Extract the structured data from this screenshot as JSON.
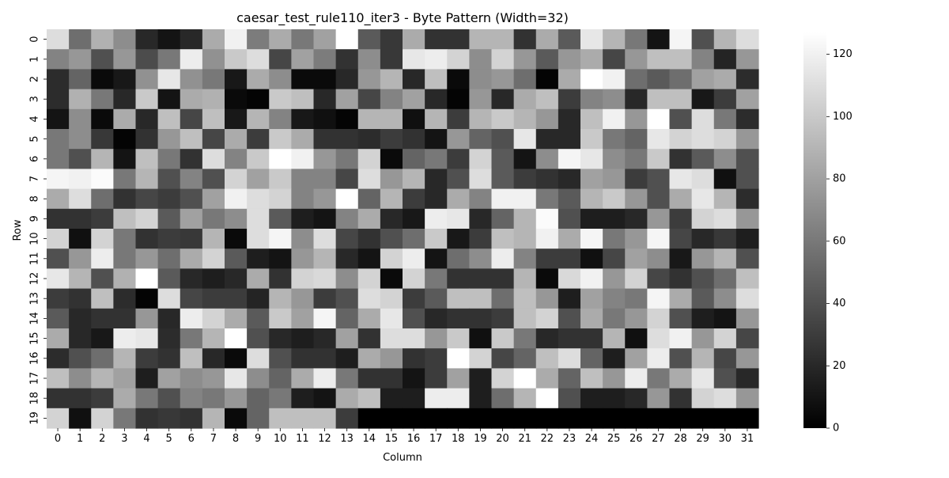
{
  "chart_data": {
    "type": "heatmap",
    "title": "caesar_test_rule110_iter3 - Byte Pattern (Width=32)",
    "xlabel": "Column",
    "ylabel": "Row",
    "x_ticks": [
      "0",
      "1",
      "2",
      "3",
      "4",
      "5",
      "6",
      "7",
      "8",
      "9",
      "10",
      "11",
      "12",
      "13",
      "14",
      "15",
      "16",
      "17",
      "18",
      "19",
      "20",
      "21",
      "22",
      "23",
      "24",
      "25",
      "26",
      "27",
      "28",
      "29",
      "30",
      "31"
    ],
    "y_ticks": [
      "0",
      "1",
      "2",
      "3",
      "4",
      "5",
      "6",
      "7",
      "8",
      "9",
      "10",
      "11",
      "12",
      "13",
      "14",
      "15",
      "16",
      "17",
      "18",
      "19"
    ],
    "value_range": [
      0,
      127
    ],
    "colormap": "gray",
    "colorbar": {
      "ticks": [
        "0",
        "20",
        "40",
        "60",
        "80",
        "100",
        "120"
      ],
      "tick_values": [
        0,
        20,
        40,
        60,
        80,
        100,
        120
      ]
    },
    "values": [
      [
        110,
        55,
        88,
        70,
        20,
        10,
        20,
        85,
        120,
        62,
        85,
        60,
        80,
        127,
        45,
        28,
        85,
        25,
        25,
        90,
        90,
        25,
        85,
        45,
        115,
        90,
        60,
        10,
        122,
        40,
        90,
        110
      ],
      [
        65,
        75,
        40,
        75,
        38,
        60,
        118,
        72,
        100,
        110,
        35,
        80,
        62,
        25,
        70,
        28,
        115,
        118,
        105,
        70,
        105,
        75,
        45,
        75,
        85,
        35,
        75,
        95,
        95,
        65,
        18,
        75
      ],
      [
        22,
        50,
        5,
        12,
        72,
        115,
        72,
        60,
        12,
        85,
        70,
        5,
        5,
        20,
        75,
        90,
        20,
        95,
        5,
        70,
        75,
        55,
        2,
        85,
        127,
        120,
        55,
        45,
        55,
        80,
        85,
        22
      ],
      [
        22,
        88,
        60,
        20,
        100,
        10,
        85,
        88,
        5,
        2,
        100,
        95,
        20,
        80,
        35,
        65,
        80,
        20,
        2,
        75,
        20,
        85,
        95,
        30,
        65,
        70,
        20,
        95,
        95,
        12,
        30,
        80
      ],
      [
        10,
        70,
        5,
        85,
        20,
        95,
        35,
        95,
        12,
        90,
        65,
        12,
        8,
        2,
        90,
        90,
        8,
        90,
        30,
        90,
        100,
        90,
        75,
        20,
        95,
        120,
        75,
        127,
        40,
        110,
        60,
        22
      ],
      [
        60,
        70,
        28,
        2,
        25,
        75,
        95,
        35,
        85,
        30,
        100,
        85,
        25,
        25,
        22,
        30,
        25,
        10,
        75,
        50,
        40,
        115,
        20,
        20,
        100,
        60,
        50,
        115,
        105,
        110,
        105,
        75
      ],
      [
        60,
        40,
        90,
        10,
        95,
        60,
        25,
        110,
        65,
        100,
        127,
        120,
        75,
        60,
        105,
        5,
        50,
        60,
        30,
        105,
        45,
        10,
        70,
        122,
        115,
        70,
        60,
        100,
        25,
        45,
        70,
        40
      ],
      [
        122,
        120,
        125,
        60,
        90,
        40,
        65,
        40,
        105,
        80,
        100,
        65,
        65,
        35,
        110,
        75,
        90,
        20,
        40,
        110,
        45,
        30,
        25,
        20,
        80,
        75,
        30,
        40,
        115,
        110,
        8,
        40
      ],
      [
        85,
        110,
        55,
        25,
        35,
        30,
        40,
        80,
        120,
        110,
        105,
        65,
        75,
        127,
        50,
        90,
        30,
        20,
        85,
        65,
        120,
        120,
        60,
        45,
        90,
        100,
        75,
        40,
        85,
        115,
        90,
        22
      ],
      [
        25,
        25,
        30,
        95,
        105,
        45,
        80,
        60,
        70,
        110,
        45,
        15,
        10,
        65,
        85,
        20,
        12,
        118,
        115,
        20,
        50,
        90,
        125,
        40,
        15,
        15,
        20,
        75,
        30,
        105,
        110,
        75
      ],
      [
        105,
        8,
        105,
        60,
        25,
        30,
        28,
        90,
        5,
        110,
        122,
        70,
        110,
        35,
        25,
        40,
        55,
        100,
        12,
        30,
        95,
        90,
        120,
        85,
        122,
        60,
        75,
        122,
        35,
        20,
        28,
        15
      ],
      [
        40,
        75,
        118,
        60,
        75,
        55,
        85,
        105,
        45,
        15,
        10,
        75,
        90,
        20,
        10,
        105,
        118,
        10,
        55,
        70,
        118,
        65,
        30,
        30,
        8,
        35,
        80,
        70,
        12,
        75,
        90,
        40
      ],
      [
        115,
        90,
        40,
        88,
        127,
        45,
        20,
        15,
        20,
        85,
        25,
        105,
        108,
        70,
        105,
        5,
        105,
        60,
        25,
        25,
        25,
        90,
        5,
        108,
        120,
        75,
        105,
        35,
        25,
        40,
        55,
        95
      ],
      [
        30,
        25,
        95,
        22,
        2,
        110,
        35,
        30,
        30,
        18,
        90,
        75,
        30,
        40,
        110,
        105,
        30,
        45,
        95,
        95,
        55,
        95,
        75,
        15,
        80,
        65,
        60,
        122,
        85,
        45,
        70,
        110
      ],
      [
        45,
        20,
        25,
        25,
        75,
        20,
        118,
        105,
        85,
        45,
        100,
        80,
        122,
        50,
        85,
        115,
        40,
        20,
        25,
        25,
        30,
        95,
        105,
        40,
        85,
        60,
        75,
        105,
        40,
        15,
        10,
        75
      ],
      [
        85,
        20,
        12,
        118,
        115,
        22,
        60,
        90,
        127,
        40,
        20,
        15,
        20,
        80,
        25,
        110,
        110,
        75,
        100,
        8,
        100,
        60,
        20,
        25,
        25,
        90,
        8,
        110,
        120,
        75,
        105,
        35
      ],
      [
        22,
        40,
        55,
        90,
        30,
        25,
        95,
        20,
        5,
        110,
        40,
        25,
        25,
        15,
        85,
        75,
        25,
        30,
        127,
        105,
        35,
        50,
        95,
        110,
        50,
        15,
        80,
        118,
        40,
        90,
        35,
        75
      ],
      [
        95,
        70,
        90,
        80,
        15,
        80,
        70,
        75,
        115,
        70,
        50,
        85,
        118,
        60,
        25,
        25,
        10,
        30,
        80,
        15,
        105,
        127,
        85,
        50,
        95,
        75,
        118,
        60,
        85,
        115,
        40,
        20
      ],
      [
        25,
        25,
        30,
        85,
        60,
        40,
        65,
        60,
        75,
        50,
        60,
        15,
        10,
        85,
        95,
        15,
        15,
        118,
        118,
        15,
        55,
        90,
        127,
        40,
        15,
        15,
        20,
        75,
        25,
        105,
        110,
        75
      ],
      [
        105,
        8,
        105,
        60,
        25,
        28,
        25,
        90,
        5,
        50,
        95,
        95,
        95,
        30,
        0,
        0,
        0,
        0,
        0,
        0,
        0,
        0,
        0,
        0,
        0,
        0,
        0,
        0,
        0,
        0,
        0,
        0
      ]
    ]
  }
}
